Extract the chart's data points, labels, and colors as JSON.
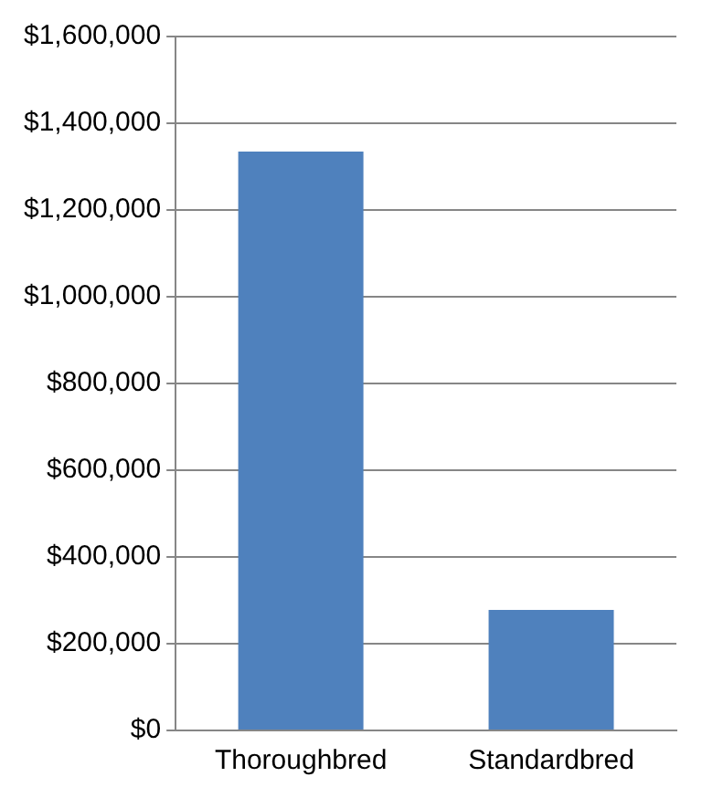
{
  "chart_data": {
    "type": "bar",
    "categories": [
      "Thoroughbred",
      "Standardbred"
    ],
    "values": [
      1335000,
      278000
    ],
    "color": "#4f81bd",
    "ylim": [
      0,
      1600000
    ],
    "yticks": [
      {
        "value": 0,
        "label": "$0"
      },
      {
        "value": 200000,
        "label": "$200,000"
      },
      {
        "value": 400000,
        "label": "$400,000"
      },
      {
        "value": 600000,
        "label": "$600,000"
      },
      {
        "value": 800000,
        "label": "$800,000"
      },
      {
        "value": 1000000,
        "label": "$1,000,000"
      },
      {
        "value": 1200000,
        "label": "$1,200,000"
      },
      {
        "value": 1400000,
        "label": "$1,400,000"
      },
      {
        "value": 1600000,
        "label": "$1,600,000"
      }
    ],
    "grid": "y"
  }
}
